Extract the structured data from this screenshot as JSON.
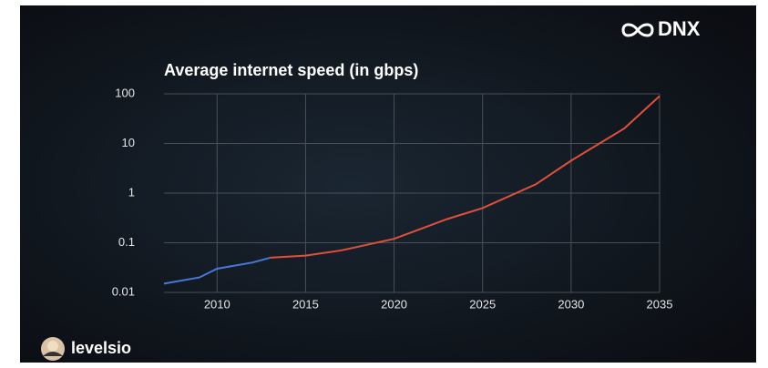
{
  "brand": "DNX",
  "author": "levelsio",
  "chart_data": {
    "type": "line",
    "title": "Average internet speed (in gbps)",
    "x": [
      2007,
      2009,
      2010,
      2012,
      2013,
      2015,
      2017,
      2020,
      2023,
      2025,
      2028,
      2030,
      2033,
      2035
    ],
    "series": [
      {
        "color": "#4a78d8",
        "values": [
          0.015,
          0.02,
          0.03,
          0.04,
          0.05,
          null,
          null,
          null,
          null,
          null,
          null,
          null,
          null,
          null
        ]
      },
      {
        "color": "#e0503c",
        "values": [
          null,
          null,
          null,
          null,
          0.05,
          0.055,
          0.07,
          0.12,
          0.3,
          0.5,
          1.5,
          4.5,
          20,
          90
        ]
      }
    ],
    "xlim": [
      2007,
      2035
    ],
    "xticks": [
      2010,
      2015,
      2020,
      2025,
      2030,
      2035
    ],
    "ylim": [
      0.01,
      100
    ],
    "yticks": [
      100,
      10,
      1,
      0.1,
      0.01
    ],
    "yscale": "log",
    "grid": true
  }
}
